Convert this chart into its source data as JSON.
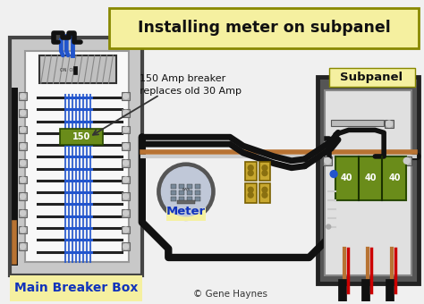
{
  "title": "Installing meter on subpanel",
  "bg_color": "#f0f0f0",
  "title_bg": "#f5f0a0",
  "title_border": "#888800",
  "main_box_label": "Main Breaker Box",
  "main_box_label_bg": "#f5f0a0",
  "subpanel_label": "Subpanel",
  "subpanel_label_bg": "#f5f0a0",
  "meter_label": "Meter",
  "meter_label_bg": "#f5f0a0",
  "annotation": "150 Amp breaker\nreplaces old 30 Amp",
  "copyright": "© Gene Haynes",
  "breaker_150_label": "150",
  "breaker_40_labels": [
    "40",
    "40",
    "40"
  ],
  "main_box_fill": "#c8c8c8",
  "main_box_border": "#444444",
  "subpanel_fill": "#aaaaaa",
  "subpanel_border": "#333333",
  "inner_panel_fill": "#f0f0f0",
  "breaker_main_fill": "#cccccc",
  "breaker_green_fill": "#6a8c1a",
  "wire_black": "#111111",
  "wire_red": "#cc0000",
  "wire_copper": "#b87333",
  "wire_blue": "#2255cc",
  "wire_white": "#cccccc",
  "meter_rim_fill": "#888888",
  "meter_face_fill": "#c0c8d8",
  "lugs_gold": "#c8a830",
  "screw_gray": "#999999",
  "screw_square_fill": "#aaaaaa",
  "screw_square_border": "#666666"
}
